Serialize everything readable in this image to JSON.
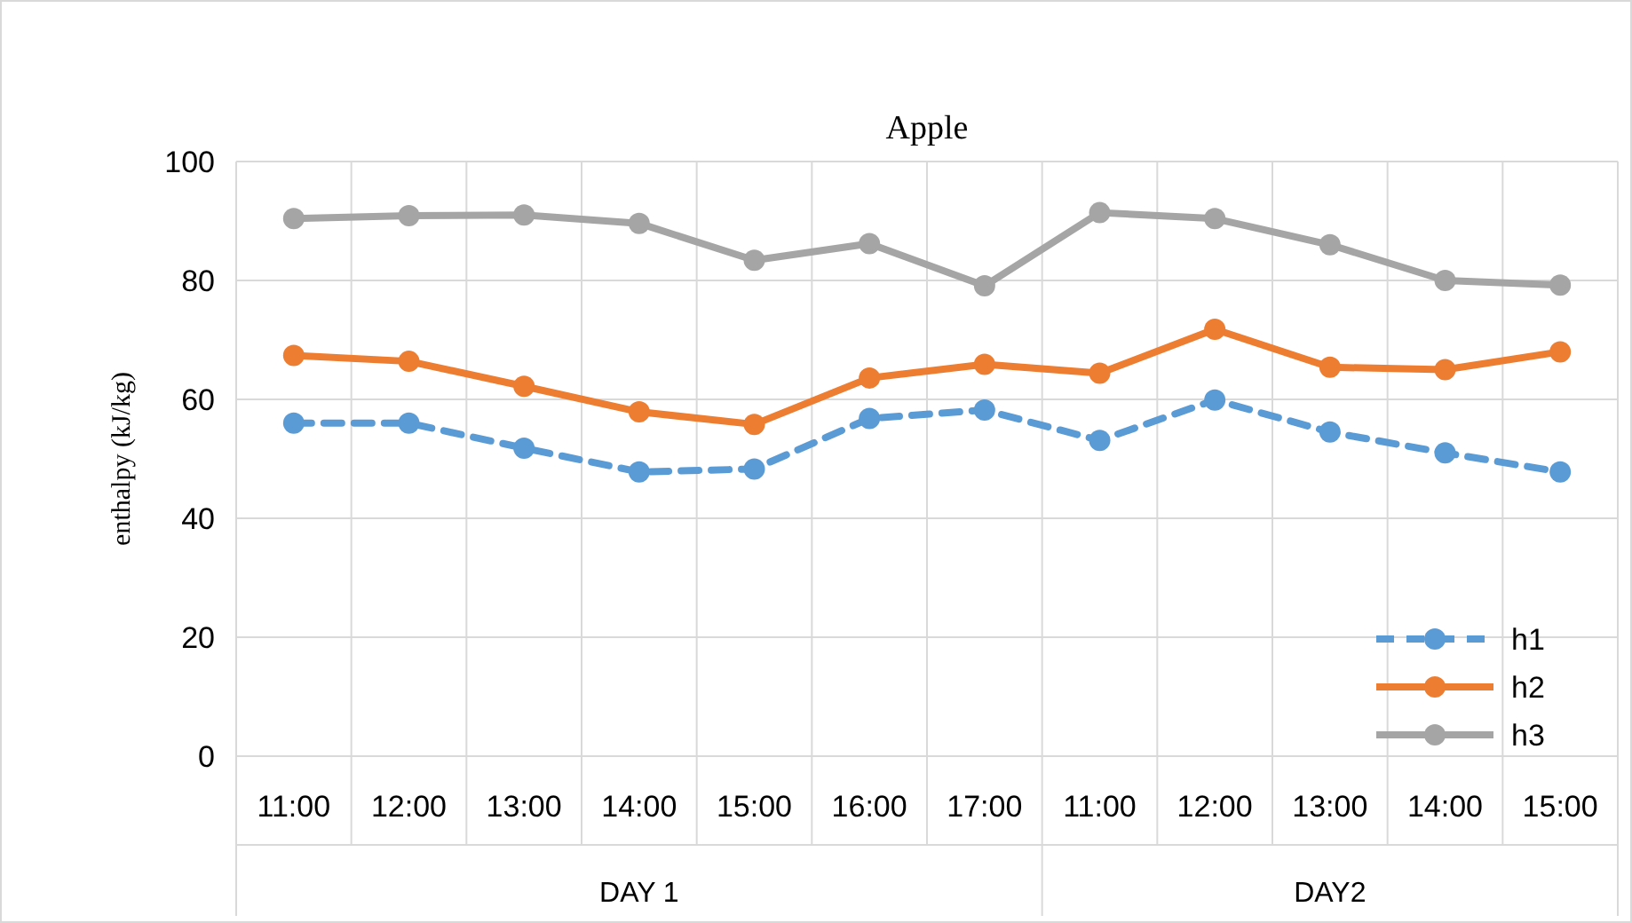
{
  "chart_data": {
    "type": "line",
    "title": "Apple",
    "ylabel": "enthalpy (kJ/kg)",
    "categories": [
      "11:00",
      "12:00",
      "13:00",
      "14:00",
      "15:00",
      "16:00",
      "17:00",
      "11:00",
      "12:00",
      "13:00",
      "14:00",
      "15:00"
    ],
    "annotations": [
      "DAY 1",
      "DAY2"
    ],
    "series": [
      {
        "name": "h1",
        "color": "#5b9bd5",
        "line_style": "dashed",
        "values": [
          56,
          56,
          51.8,
          47.8,
          48.3,
          56.8,
          58.2,
          53.1,
          59.9,
          54.5,
          51,
          47.8
        ]
      },
      {
        "name": "h2",
        "color": "#ed7d31",
        "line_style": "solid",
        "values": [
          67.4,
          66.4,
          62.2,
          57.9,
          55.8,
          63.6,
          65.9,
          64.4,
          71.8,
          65.4,
          65,
          68
        ]
      },
      {
        "name": "h3",
        "color": "#a5a5a5",
        "line_style": "solid",
        "values": [
          90.4,
          90.9,
          91,
          89.6,
          83.4,
          86.2,
          79.1,
          91.4,
          90.4,
          86,
          80,
          79.2
        ]
      }
    ],
    "ylim": [
      0,
      100
    ],
    "yticks": [
      0,
      20,
      40,
      60,
      80,
      100
    ],
    "grid": true,
    "legend": "bottom right",
    "marker": "circle"
  }
}
